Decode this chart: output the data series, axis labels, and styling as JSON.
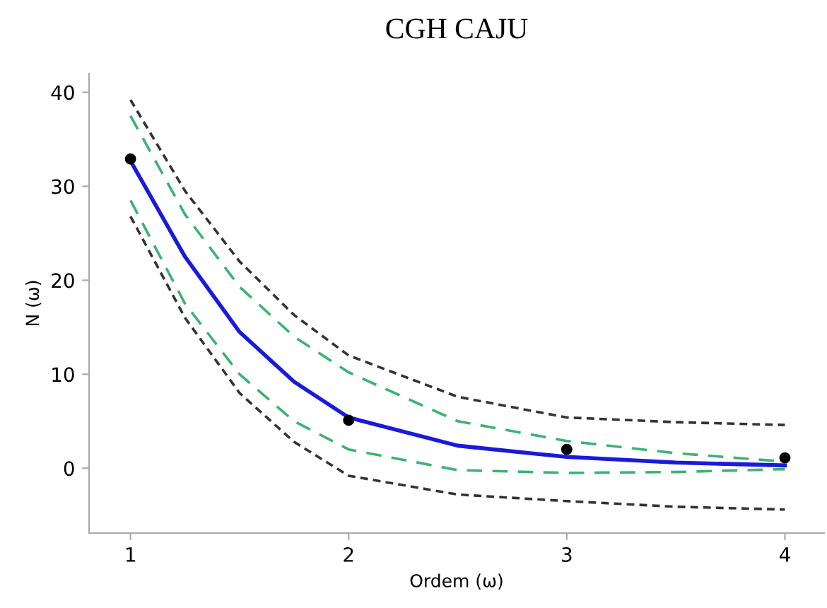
{
  "chart_data": {
    "type": "line",
    "title": "CGH CAJU",
    "xlabel": "Ordem (ω)",
    "ylabel": "N (ω)",
    "xlim": [
      0.81,
      4.18
    ],
    "ylim": [
      -6.9,
      42
    ],
    "xticks": [
      1,
      2,
      3,
      4
    ],
    "yticks": [
      0,
      10,
      20,
      30,
      40
    ],
    "grid": false,
    "series": [
      {
        "type": "line",
        "line_style": "dotted",
        "color": "#333333",
        "x": [
          1,
          1.25,
          1.5,
          1.75,
          2,
          2.5,
          3,
          3.5,
          4
        ],
        "values": [
          39.2,
          29.5,
          22,
          16.3,
          12,
          7.6,
          5.4,
          4.9,
          4.6
        ]
      },
      {
        "type": "line",
        "line_style": "dotted",
        "color": "#333333",
        "x": [
          1,
          1.25,
          1.5,
          1.75,
          2,
          2.5,
          3,
          3.5,
          4
        ],
        "values": [
          26.8,
          16,
          8,
          2.8,
          -0.8,
          -2.8,
          -3.5,
          -4.1,
          -4.4
        ]
      },
      {
        "type": "line",
        "line_style": "dashed",
        "color": "#3cb371",
        "x": [
          1,
          1.25,
          1.5,
          1.75,
          2,
          2.5,
          3,
          3.5,
          4
        ],
        "values": [
          37.5,
          27,
          19.3,
          14,
          10.2,
          5.0,
          2.9,
          1.6,
          0.7
        ]
      },
      {
        "type": "line",
        "line_style": "dashed",
        "color": "#3cb371",
        "x": [
          1,
          1.25,
          1.5,
          1.75,
          2,
          2.5,
          3,
          3.5,
          4
        ],
        "values": [
          28.5,
          17.5,
          10,
          5,
          2.0,
          -0.2,
          -0.5,
          -0.4,
          -0.1
        ]
      },
      {
        "type": "line",
        "line_style": "solid",
        "color": "#1a1adb",
        "x": [
          1,
          1.25,
          1.5,
          1.75,
          2,
          2.5,
          3,
          3.5,
          4
        ],
        "values": [
          32.7,
          22.5,
          14.5,
          9.2,
          5.4,
          2.4,
          1.2,
          0.6,
          0.3
        ]
      },
      {
        "type": "scatter",
        "marker": "circle",
        "color": "#000000",
        "x": [
          1,
          2,
          3,
          4
        ],
        "values": [
          32.9,
          5.1,
          2.0,
          1.1
        ]
      }
    ]
  }
}
